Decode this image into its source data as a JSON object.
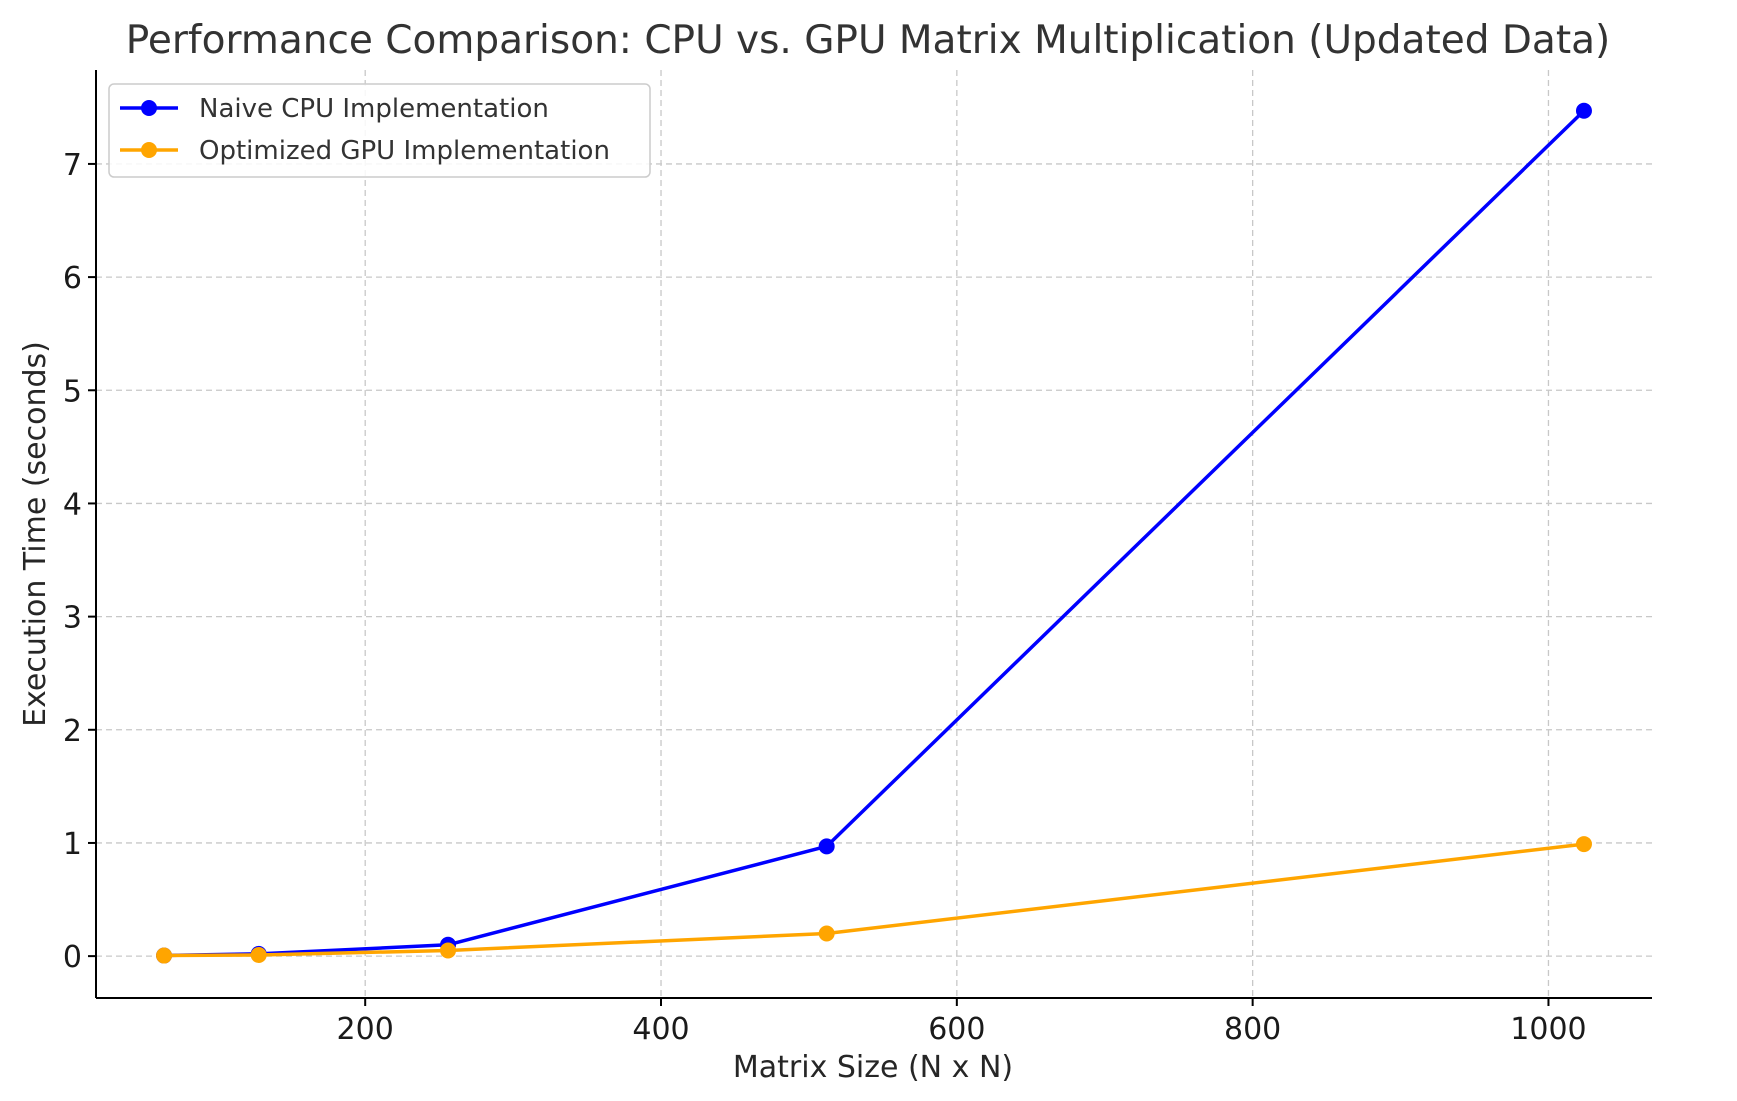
{
  "chart_data": {
    "type": "line",
    "title": "Performance Comparison: CPU vs. GPU Matrix Multiplication (Updated Data)",
    "xlabel": "Matrix Size (N x N)",
    "ylabel": "Execution Time (seconds)",
    "xlim": [
      18,
      1070
    ],
    "ylim": [
      -0.37,
      7.83
    ],
    "xticks": [
      200,
      400,
      600,
      800,
      1000
    ],
    "yticks": [
      0,
      1,
      2,
      3,
      4,
      5,
      6,
      7
    ],
    "grid": true,
    "legend_position": "top-left",
    "series": [
      {
        "name": "Naive CPU Implementation",
        "color": "#0000ff",
        "marker": "circle",
        "x": [
          64,
          128,
          256,
          512,
          1024
        ],
        "y": [
          0.005,
          0.02,
          0.1,
          0.97,
          7.47
        ]
      },
      {
        "name": "Optimized GPU Implementation",
        "color": "#ffa500",
        "marker": "circle",
        "x": [
          64,
          128,
          256,
          512,
          1024
        ],
        "y": [
          0.005,
          0.01,
          0.05,
          0.2,
          0.99
        ]
      }
    ]
  }
}
